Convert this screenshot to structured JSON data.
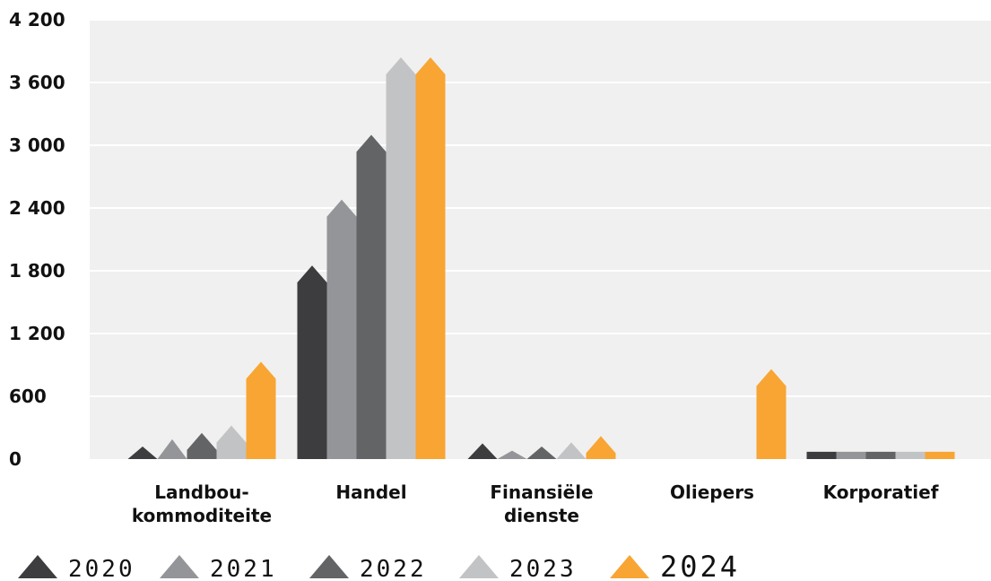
{
  "chart_data": {
    "type": "bar",
    "categories": [
      [
        "Landbou-",
        "kommoditeite"
      ],
      [
        "Handel"
      ],
      [
        "Finansiële",
        "dienste"
      ],
      [
        "Oliepers"
      ],
      [
        "Korporatief"
      ]
    ],
    "series": [
      {
        "name": "2020",
        "color": "#3d3d3f",
        "values": [
          120,
          1850,
          150,
          0,
          70
        ]
      },
      {
        "name": "2021",
        "color": "#949598",
        "values": [
          190,
          2480,
          80,
          0,
          70
        ]
      },
      {
        "name": "2022",
        "color": "#636466",
        "values": [
          250,
          3100,
          120,
          0,
          70
        ]
      },
      {
        "name": "2023",
        "color": "#c2c3c5",
        "values": [
          320,
          3840,
          160,
          0,
          70
        ]
      },
      {
        "name": "2024",
        "color": "#f8a533",
        "values": [
          930,
          3840,
          220,
          860,
          70
        ]
      }
    ],
    "ylim": [
      0,
      4200
    ],
    "yticks": [
      "0",
      "600",
      "1 200",
      "1 800",
      "2 400",
      "3 000",
      "3 600",
      "4 200"
    ],
    "ytick_values": [
      0,
      600,
      1200,
      1800,
      2400,
      3000,
      3600,
      4200
    ],
    "grid": true,
    "legend_position": "bottom-left",
    "colors": {
      "plot_bg": "#f0f0f0",
      "grid": "#ffffff"
    }
  }
}
